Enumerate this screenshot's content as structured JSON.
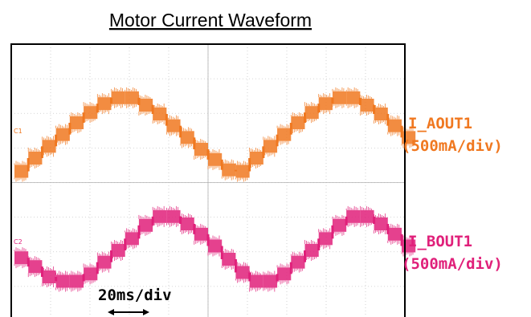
{
  "chart_data": {
    "type": "line",
    "title": "Motor Current Waveform",
    "time_scale_label": "20ms/div",
    "grid": true,
    "colors": {
      "ch1": "#f07820",
      "ch2": "#e0207a",
      "grid": "#c8c8c8",
      "frame": "#000000"
    },
    "channel_markers": [
      "C1",
      "C2"
    ],
    "series": [
      {
        "name": "I_AOUT1",
        "scale_label": "(500mA/div)",
        "color": "#f07820",
        "x": [
          0,
          10,
          20,
          30,
          40,
          50,
          60,
          70,
          80,
          90,
          100,
          110,
          120,
          130,
          140,
          150,
          160,
          170,
          180,
          190,
          200,
          210,
          220,
          230,
          240,
          250,
          260,
          270,
          280
        ],
        "values": [
          -1.05,
          -0.6,
          -0.2,
          0.2,
          0.6,
          0.95,
          1.25,
          1.45,
          1.45,
          1.2,
          0.9,
          0.5,
          0.1,
          -0.3,
          -0.65,
          -1.0,
          -1.05,
          -0.6,
          -0.2,
          0.2,
          0.6,
          0.95,
          1.25,
          1.45,
          1.45,
          1.2,
          0.9,
          0.5,
          0.1
        ]
      },
      {
        "name": "I_BOUT1",
        "scale_label": "(500mA/div)",
        "color": "#e0207a",
        "x": [
          0,
          10,
          20,
          30,
          40,
          50,
          60,
          70,
          80,
          90,
          100,
          110,
          120,
          130,
          140,
          150,
          160,
          170,
          180,
          190,
          200,
          210,
          220,
          230,
          240,
          250,
          260,
          270,
          280
        ],
        "values": [
          -0.25,
          -0.55,
          -0.9,
          -1.05,
          -1.05,
          -0.8,
          -0.4,
          0.0,
          0.4,
          0.85,
          1.15,
          1.15,
          0.9,
          0.55,
          0.15,
          -0.3,
          -0.75,
          -1.05,
          -1.05,
          -0.8,
          -0.4,
          0.0,
          0.4,
          0.85,
          1.15,
          1.15,
          0.9,
          0.55,
          0.15
        ]
      }
    ]
  }
}
